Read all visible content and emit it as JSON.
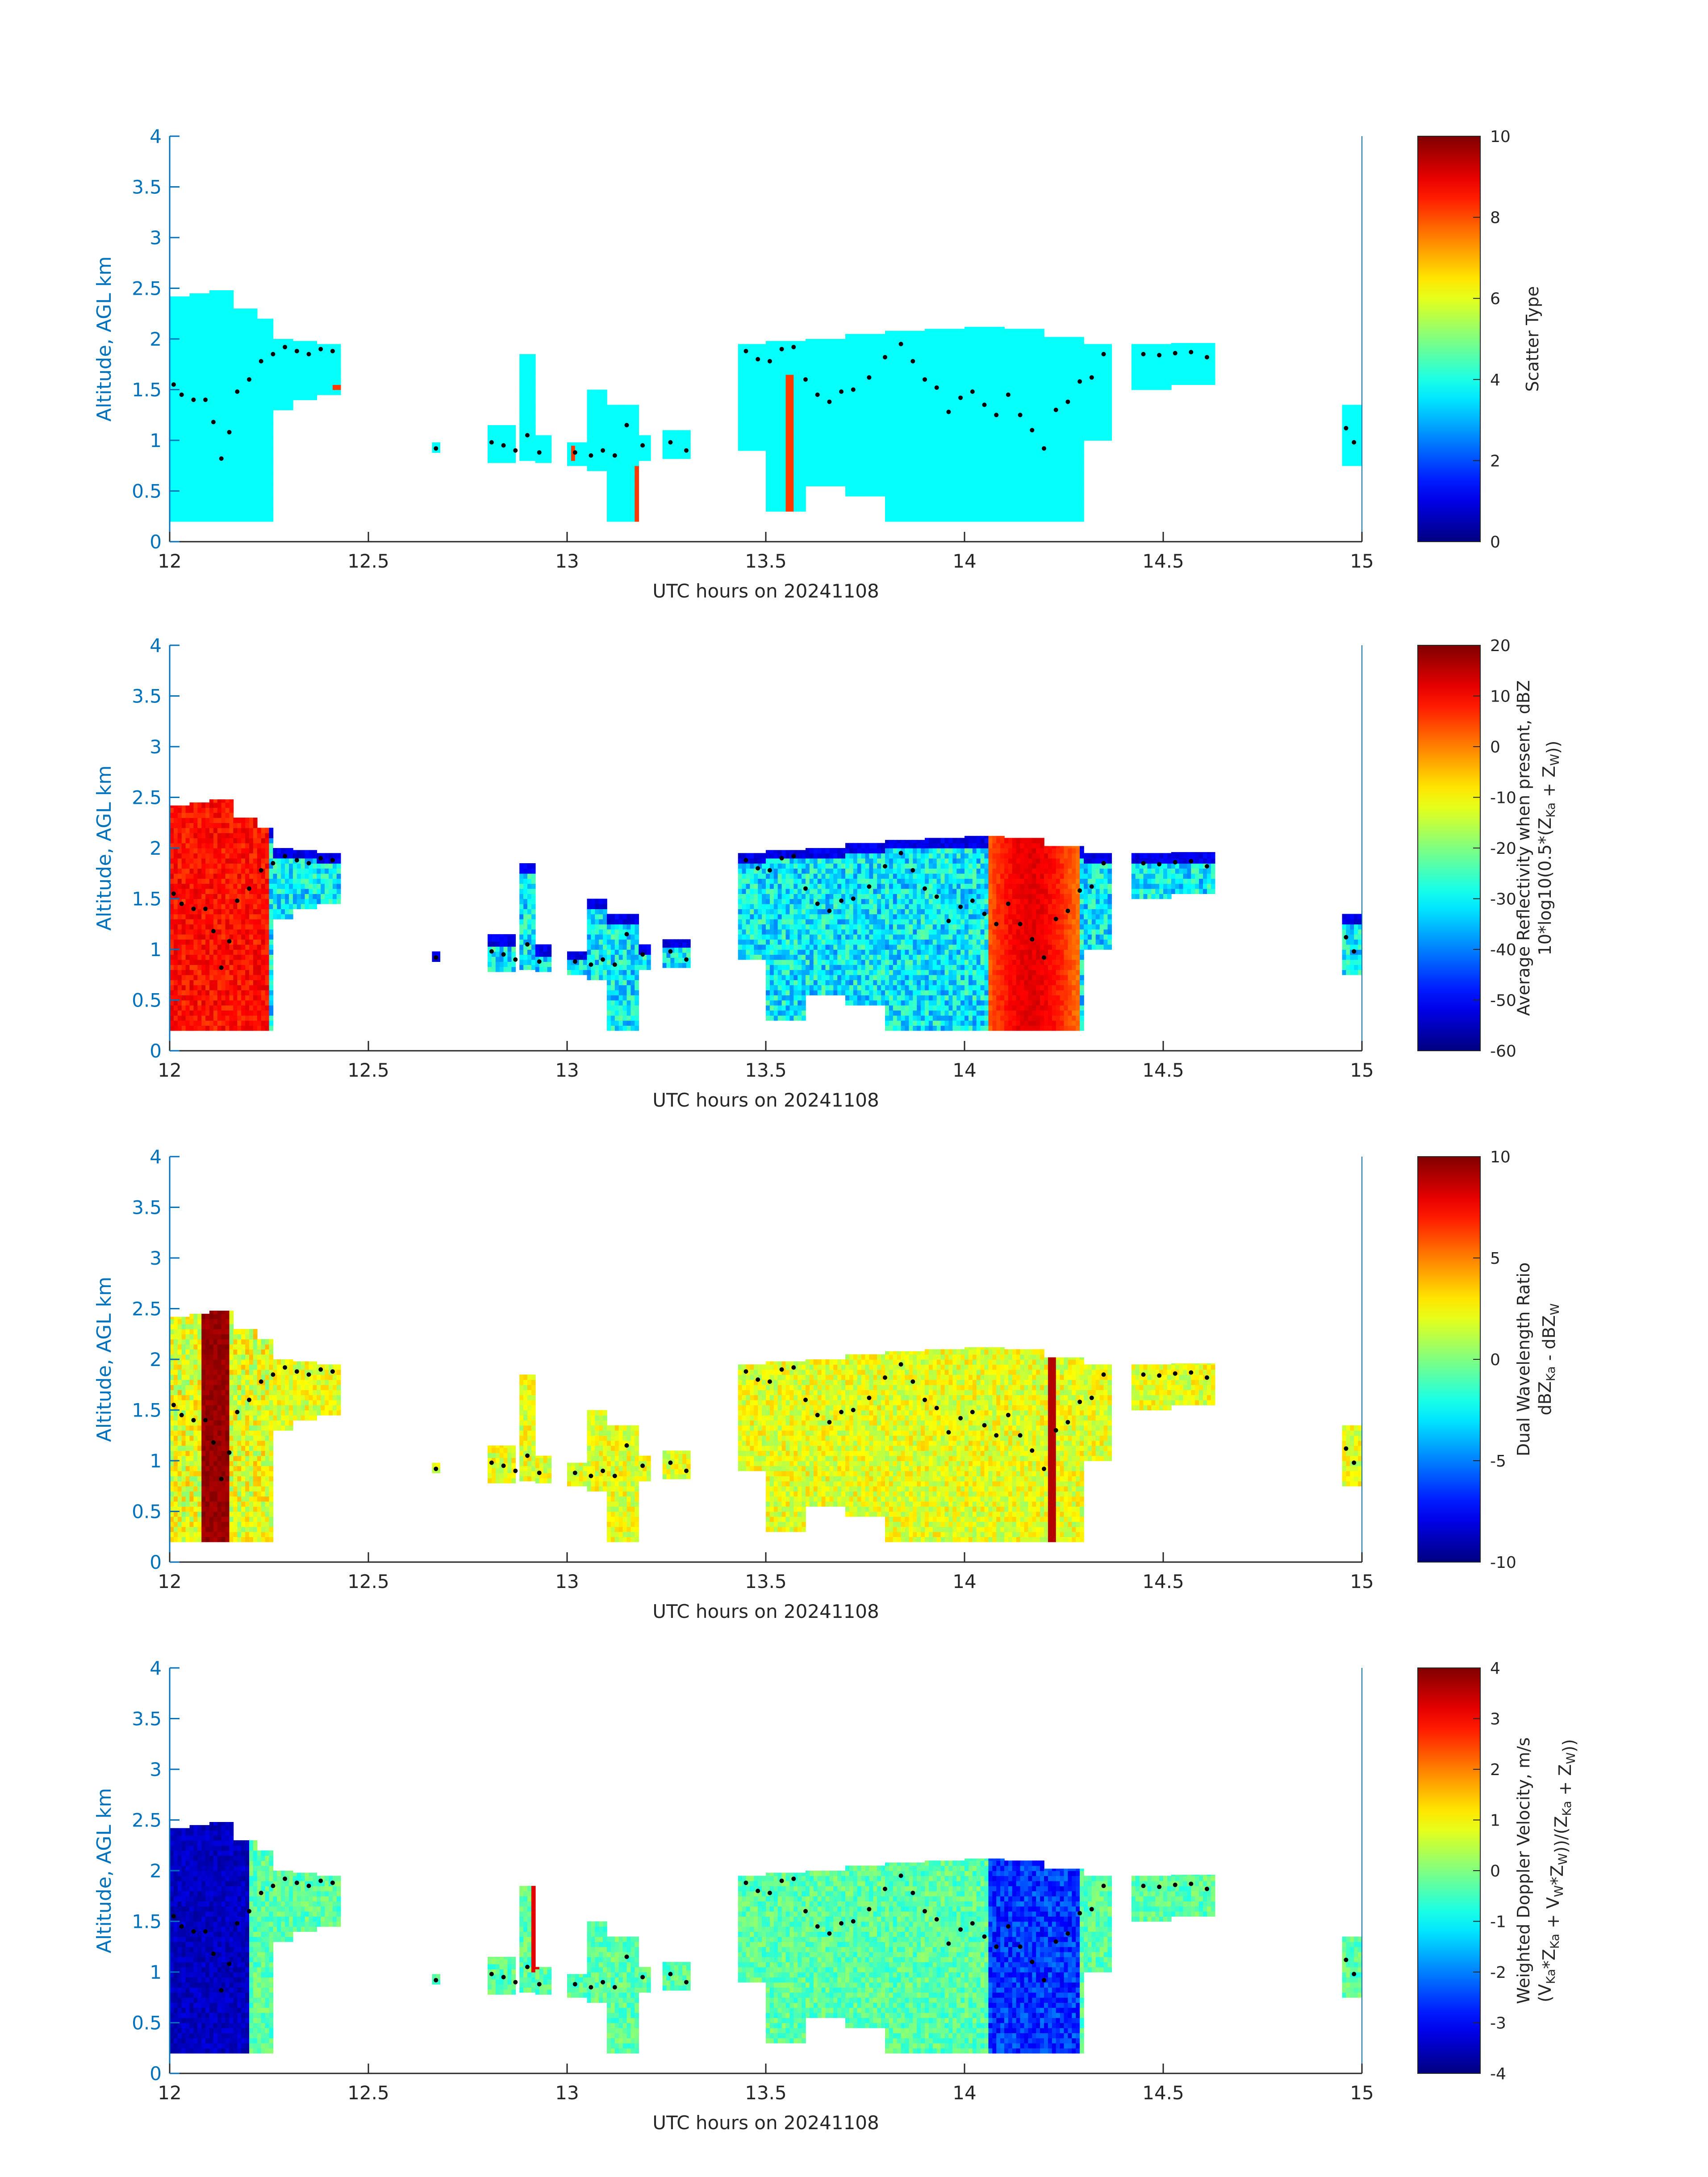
{
  "chart_data": [
    {
      "type": "heatmap",
      "xlabel": "UTC hours on 20241108",
      "ylabel": "Altitude, AGL km",
      "xlim": [
        12,
        15
      ],
      "ylim": [
        0,
        4
      ],
      "xticks": [
        "12",
        "12.5",
        "13",
        "13.5",
        "14",
        "14.5",
        "15"
      ],
      "yticks": [
        "0",
        "0.5",
        "1",
        "1.5",
        "2",
        "2.5",
        "3",
        "3.5",
        "4"
      ],
      "colorbar": {
        "label_lines": [
          "Scatter Type"
        ],
        "range": [
          0,
          10
        ],
        "ticks": [
          "0",
          "2",
          "4",
          "6",
          "8",
          "10"
        ]
      },
      "fill_value": 3.8,
      "accent_value": 8.2,
      "field": "type",
      "marker_color": "#000000"
    },
    {
      "type": "heatmap",
      "xlabel": "UTC hours on 20241108",
      "ylabel": "Altitude, AGL km",
      "xlim": [
        12,
        15
      ],
      "ylim": [
        0,
        4
      ],
      "xticks": [
        "12",
        "12.5",
        "13",
        "13.5",
        "14",
        "14.5",
        "15"
      ],
      "yticks": [
        "0",
        "0.5",
        "1",
        "1.5",
        "2",
        "2.5",
        "3",
        "3.5",
        "4"
      ],
      "colorbar": {
        "label_lines": [
          "Average Reflectivity when present, dBZ",
          "10*log10(0.5*(Z_Ka + Z_W))"
        ],
        "range": [
          -60,
          20
        ],
        "ticks": [
          "-60",
          "-50",
          "-40",
          "-30",
          "-20",
          "-10",
          "0",
          "10",
          "20"
        ]
      },
      "field": "reflectivity",
      "marker_color": "#000000"
    },
    {
      "type": "heatmap",
      "xlabel": "UTC hours on 20241108",
      "ylabel": "Altitude, AGL km",
      "xlim": [
        12,
        15
      ],
      "ylim": [
        0,
        4
      ],
      "xticks": [
        "12",
        "12.5",
        "13",
        "13.5",
        "14",
        "14.5",
        "15"
      ],
      "yticks": [
        "0",
        "0.5",
        "1",
        "1.5",
        "2",
        "2.5",
        "3",
        "3.5",
        "4"
      ],
      "colorbar": {
        "label_lines": [
          "Dual Wavelength Ratio",
          "dBZ_Ka - dBZ_W"
        ],
        "range": [
          -10,
          10
        ],
        "ticks": [
          "-10",
          "-5",
          "0",
          "5",
          "10"
        ]
      },
      "field": "dwr",
      "marker_color": "#000000"
    },
    {
      "type": "heatmap",
      "xlabel": "UTC hours on 20241108",
      "ylabel": "Altitude, AGL km",
      "xlim": [
        12,
        15
      ],
      "ylim": [
        0,
        4
      ],
      "xticks": [
        "12",
        "12.5",
        "13",
        "13.5",
        "14",
        "14.5",
        "15"
      ],
      "yticks": [
        "0",
        "0.5",
        "1",
        "1.5",
        "2",
        "2.5",
        "3",
        "3.5",
        "4"
      ],
      "colorbar": {
        "label_lines": [
          "Weighted Doppler Velocity, m/s",
          "(V_Ka*Z_Ka + V_W*Z_W))/(Z_Ka + Z_W))"
        ],
        "range": [
          -4,
          4
        ],
        "ticks": [
          "-4",
          "-3",
          "-2",
          "-1",
          "0",
          "1",
          "2",
          "3",
          "4"
        ]
      },
      "field": "velocity",
      "marker_color": "#000000"
    }
  ],
  "cloud_segments": [
    {
      "t0": 12.0,
      "t1": 12.05,
      "base": 0.2,
      "top": 2.42
    },
    {
      "t0": 12.05,
      "t1": 12.1,
      "base": 0.2,
      "top": 2.45
    },
    {
      "t0": 12.1,
      "t1": 12.16,
      "base": 0.2,
      "top": 2.48
    },
    {
      "t0": 12.16,
      "t1": 12.22,
      "base": 0.2,
      "top": 2.3
    },
    {
      "t0": 12.22,
      "t1": 12.26,
      "base": 0.2,
      "top": 2.2
    },
    {
      "t0": 12.26,
      "t1": 12.31,
      "base": 1.3,
      "top": 2.0
    },
    {
      "t0": 12.31,
      "t1": 12.37,
      "base": 1.4,
      "top": 1.98
    },
    {
      "t0": 12.37,
      "t1": 12.43,
      "base": 1.45,
      "top": 1.95
    },
    {
      "t0": 12.66,
      "t1": 12.68,
      "base": 0.88,
      "top": 0.98
    },
    {
      "t0": 12.8,
      "t1": 12.87,
      "base": 0.78,
      "top": 1.15
    },
    {
      "t0": 12.88,
      "t1": 12.92,
      "base": 0.8,
      "top": 1.85
    },
    {
      "t0": 12.92,
      "t1": 12.96,
      "base": 0.78,
      "top": 1.05
    },
    {
      "t0": 13.0,
      "t1": 13.05,
      "base": 0.75,
      "top": 0.98
    },
    {
      "t0": 13.05,
      "t1": 13.1,
      "base": 0.7,
      "top": 1.5
    },
    {
      "t0": 13.1,
      "t1": 13.18,
      "base": 0.2,
      "top": 1.35
    },
    {
      "t0": 13.18,
      "t1": 13.21,
      "base": 0.8,
      "top": 1.05
    },
    {
      "t0": 13.24,
      "t1": 13.31,
      "base": 0.82,
      "top": 1.1
    },
    {
      "t0": 13.43,
      "t1": 13.5,
      "base": 0.9,
      "top": 1.95
    },
    {
      "t0": 13.5,
      "t1": 13.6,
      "base": 0.3,
      "top": 1.98
    },
    {
      "t0": 13.6,
      "t1": 13.7,
      "base": 0.55,
      "top": 2.0
    },
    {
      "t0": 13.7,
      "t1": 13.8,
      "base": 0.45,
      "top": 2.05
    },
    {
      "t0": 13.8,
      "t1": 13.9,
      "base": 0.2,
      "top": 2.08
    },
    {
      "t0": 13.9,
      "t1": 14.0,
      "base": 0.2,
      "top": 2.1
    },
    {
      "t0": 14.0,
      "t1": 14.1,
      "base": 0.2,
      "top": 2.12
    },
    {
      "t0": 14.1,
      "t1": 14.2,
      "base": 0.2,
      "top": 2.1
    },
    {
      "t0": 14.2,
      "t1": 14.3,
      "base": 0.2,
      "top": 2.02
    },
    {
      "t0": 14.3,
      "t1": 14.37,
      "base": 1.0,
      "top": 1.95
    },
    {
      "t0": 14.42,
      "t1": 14.52,
      "base": 1.5,
      "top": 1.95
    },
    {
      "t0": 14.52,
      "t1": 14.63,
      "base": 1.55,
      "top": 1.96
    },
    {
      "t0": 14.95,
      "t1": 15.0,
      "base": 0.75,
      "top": 1.35
    }
  ],
  "cloud_top_markers": [
    {
      "t": 12.01,
      "h": 1.55
    },
    {
      "t": 12.03,
      "h": 1.45
    },
    {
      "t": 12.06,
      "h": 1.4
    },
    {
      "t": 12.09,
      "h": 1.4
    },
    {
      "t": 12.11,
      "h": 1.18
    },
    {
      "t": 12.13,
      "h": 0.82
    },
    {
      "t": 12.15,
      "h": 1.08
    },
    {
      "t": 12.17,
      "h": 1.48
    },
    {
      "t": 12.2,
      "h": 1.6
    },
    {
      "t": 12.23,
      "h": 1.78
    },
    {
      "t": 12.26,
      "h": 1.85
    },
    {
      "t": 12.29,
      "h": 1.92
    },
    {
      "t": 12.32,
      "h": 1.88
    },
    {
      "t": 12.35,
      "h": 1.85
    },
    {
      "t": 12.38,
      "h": 1.9
    },
    {
      "t": 12.41,
      "h": 1.88
    },
    {
      "t": 12.67,
      "h": 0.92
    },
    {
      "t": 12.81,
      "h": 0.98
    },
    {
      "t": 12.84,
      "h": 0.95
    },
    {
      "t": 12.87,
      "h": 0.9
    },
    {
      "t": 12.9,
      "h": 1.05
    },
    {
      "t": 12.93,
      "h": 0.88
    },
    {
      "t": 13.02,
      "h": 0.88
    },
    {
      "t": 13.06,
      "h": 0.85
    },
    {
      "t": 13.09,
      "h": 0.9
    },
    {
      "t": 13.12,
      "h": 0.85
    },
    {
      "t": 13.15,
      "h": 1.15
    },
    {
      "t": 13.19,
      "h": 0.95
    },
    {
      "t": 13.26,
      "h": 0.98
    },
    {
      "t": 13.3,
      "h": 0.9
    },
    {
      "t": 13.45,
      "h": 1.88
    },
    {
      "t": 13.48,
      "h": 1.8
    },
    {
      "t": 13.51,
      "h": 1.78
    },
    {
      "t": 13.54,
      "h": 1.9
    },
    {
      "t": 13.57,
      "h": 1.92
    },
    {
      "t": 13.6,
      "h": 1.6
    },
    {
      "t": 13.63,
      "h": 1.45
    },
    {
      "t": 13.66,
      "h": 1.38
    },
    {
      "t": 13.69,
      "h": 1.48
    },
    {
      "t": 13.72,
      "h": 1.5
    },
    {
      "t": 13.76,
      "h": 1.62
    },
    {
      "t": 13.8,
      "h": 1.82
    },
    {
      "t": 13.84,
      "h": 1.95
    },
    {
      "t": 13.87,
      "h": 1.78
    },
    {
      "t": 13.9,
      "h": 1.6
    },
    {
      "t": 13.93,
      "h": 1.52
    },
    {
      "t": 13.96,
      "h": 1.28
    },
    {
      "t": 13.99,
      "h": 1.42
    },
    {
      "t": 14.02,
      "h": 1.48
    },
    {
      "t": 14.05,
      "h": 1.35
    },
    {
      "t": 14.08,
      "h": 1.25
    },
    {
      "t": 14.11,
      "h": 1.45
    },
    {
      "t": 14.14,
      "h": 1.25
    },
    {
      "t": 14.17,
      "h": 1.1
    },
    {
      "t": 14.2,
      "h": 0.92
    },
    {
      "t": 14.23,
      "h": 1.3
    },
    {
      "t": 14.26,
      "h": 1.38
    },
    {
      "t": 14.29,
      "h": 1.58
    },
    {
      "t": 14.32,
      "h": 1.62
    },
    {
      "t": 14.35,
      "h": 1.85
    },
    {
      "t": 14.45,
      "h": 1.85
    },
    {
      "t": 14.49,
      "h": 1.84
    },
    {
      "t": 14.53,
      "h": 1.86
    },
    {
      "t": 14.57,
      "h": 1.87
    },
    {
      "t": 14.61,
      "h": 1.82
    },
    {
      "t": 14.96,
      "h": 1.12
    },
    {
      "t": 14.98,
      "h": 0.98
    }
  ]
}
